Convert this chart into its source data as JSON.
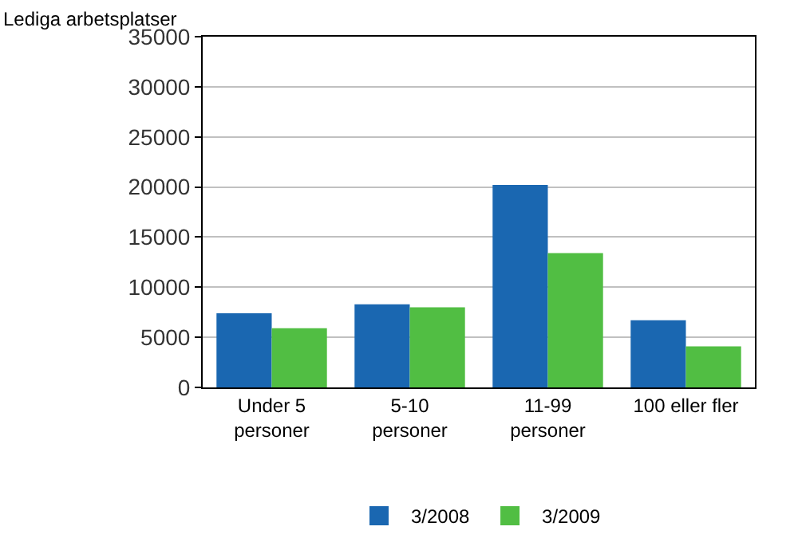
{
  "chart_data": {
    "type": "bar",
    "ylabel": "Lediga arbetsplatser",
    "categories": [
      "Under 5\npersoner",
      "5-10\npersoner",
      "11-99\npersoner",
      "100 eller fler"
    ],
    "series": [
      {
        "name": "3/2008",
        "color": "#1a67b1",
        "values": [
          7400,
          8300,
          20200,
          6700
        ]
      },
      {
        "name": "3/2009",
        "color": "#51be43",
        "values": [
          5900,
          8000,
          13400,
          4100
        ]
      }
    ],
    "ylim": [
      0,
      35000
    ],
    "yticks": [
      0,
      5000,
      10000,
      15000,
      20000,
      25000,
      30000,
      35000
    ],
    "grid": "y",
    "legend": "bottom"
  }
}
